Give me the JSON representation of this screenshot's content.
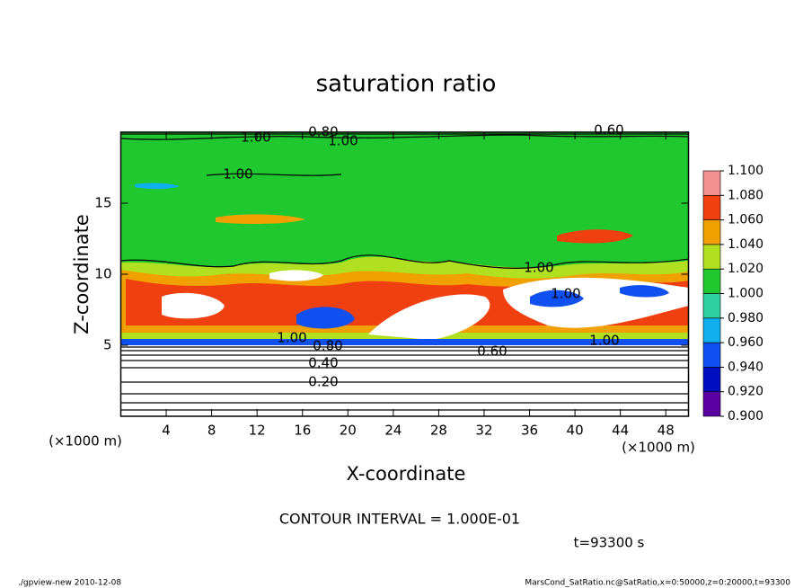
{
  "chart_data": {
    "type": "contour",
    "title": "saturation ratio",
    "xlabel": "X-coordinate",
    "ylabel": "Z-coordinate",
    "x_unit": "(×1000 m)",
    "xlim": [
      0,
      50
    ],
    "ylim": [
      0,
      20
    ],
    "xticks": [
      4,
      8,
      12,
      16,
      20,
      24,
      28,
      32,
      36,
      40,
      44,
      48
    ],
    "yticks": [
      5,
      10,
      15
    ],
    "colorbar": {
      "levels": [
        {
          "value": 0.9,
          "label": "0.900"
        },
        {
          "value": 0.92,
          "label": "0.920"
        },
        {
          "value": 0.94,
          "label": "0.940"
        },
        {
          "value": 0.96,
          "label": "0.960"
        },
        {
          "value": 0.98,
          "label": "0.980"
        },
        {
          "value": 1.0,
          "label": "1.000"
        },
        {
          "value": 1.02,
          "label": "1.020"
        },
        {
          "value": 1.04,
          "label": "1.040"
        },
        {
          "value": 1.06,
          "label": "1.060"
        },
        {
          "value": 1.08,
          "label": "1.080"
        },
        {
          "value": 1.1,
          "label": "1.100"
        }
      ],
      "colors": [
        "#5a00a0",
        "#0010c0",
        "#1050f0",
        "#10b0f0",
        "#30d0a0",
        "#20c830",
        "#b0e020",
        "#f0a000",
        "#f04010",
        "#f09090"
      ]
    },
    "contour_labels": [
      {
        "value": 0.8,
        "label": "0.80"
      },
      {
        "value": 1.0,
        "label": "1.00"
      },
      {
        "value": 1.0,
        "label": "1.00"
      },
      {
        "value": 0.6,
        "label": "0.60"
      },
      {
        "value": 1.0,
        "label": "1.00"
      },
      {
        "value": 1.0,
        "label": "1.00"
      },
      {
        "value": 1.0,
        "label": "1.00"
      },
      {
        "value": 1.0,
        "label": "1.00"
      },
      {
        "value": 0.8,
        "label": "0.80"
      },
      {
        "value": 0.4,
        "label": "0.40"
      },
      {
        "value": 0.2,
        "label": "0.20"
      },
      {
        "value": 0.6,
        "label": "0.60"
      },
      {
        "value": 1.0,
        "label": "1.00"
      }
    ],
    "contour_interval": "CONTOUR INTERVAL = 1.000E-01",
    "time": "t=93300 s",
    "footer_left": "./gpview-new  2010-12-08",
    "footer_right": "MarsCond_SatRatio.nc@SatRatio,x=0:50000,z=0:20000,t=93300"
  }
}
